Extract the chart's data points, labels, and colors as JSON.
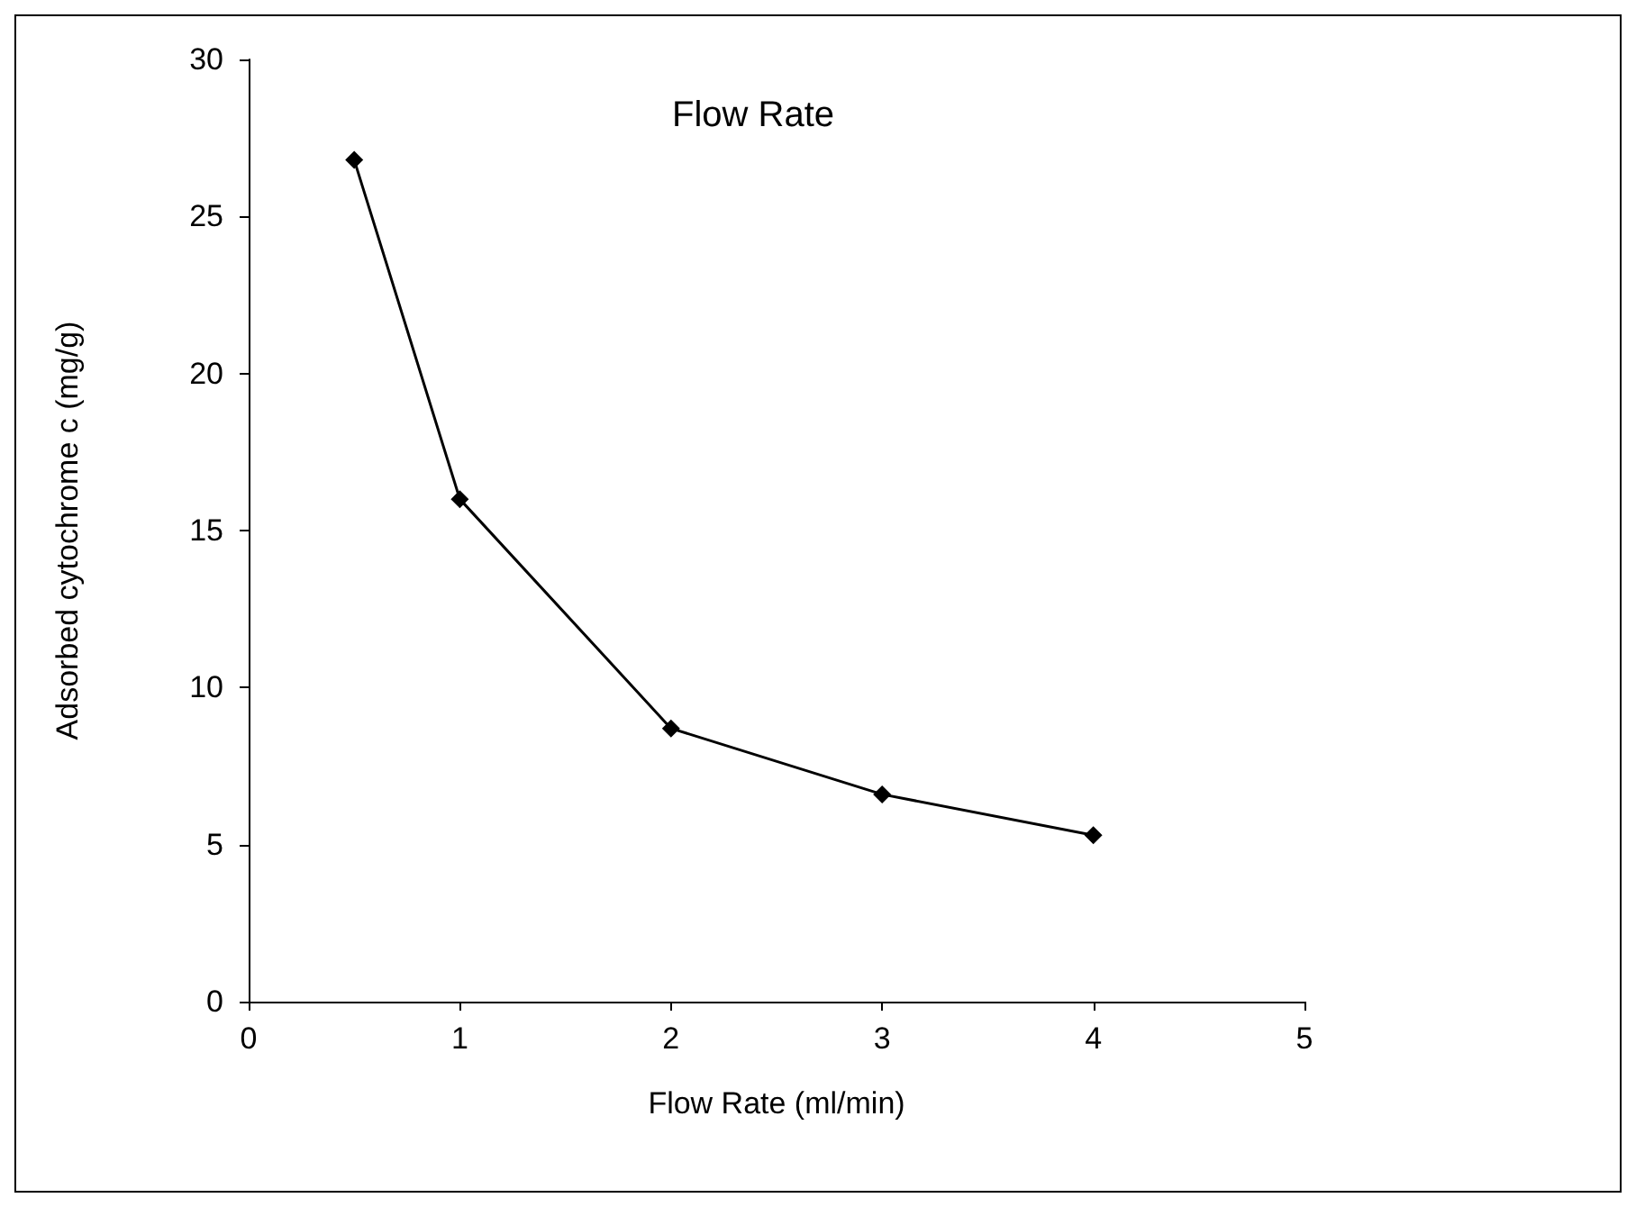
{
  "chart_data": {
    "type": "line",
    "title": "Flow Rate",
    "xlabel": "Flow Rate (ml/min)",
    "ylabel": "Adsorbed cytochrome c (mg/g)",
    "x": [
      0.5,
      1,
      2,
      3,
      4
    ],
    "series": [
      {
        "color": "#000000",
        "values": [
          26.8,
          16.0,
          8.7,
          6.6,
          5.3
        ]
      }
    ],
    "xlim": [
      0,
      5
    ],
    "xticks": [
      0,
      1,
      2,
      3,
      4,
      5
    ],
    "ylim": [
      0,
      30
    ],
    "yticks": [
      0,
      5,
      10,
      15,
      20,
      25,
      30
    ],
    "marker": "diamond",
    "line_style": "solid"
  }
}
